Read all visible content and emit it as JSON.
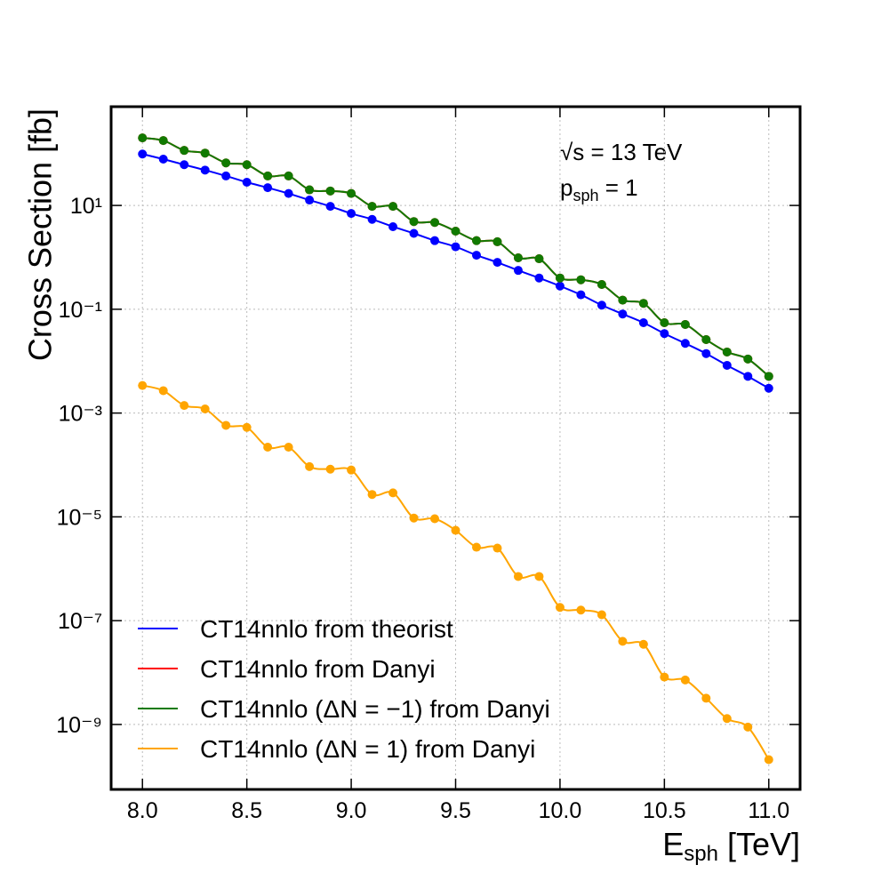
{
  "chart_data": {
    "type": "line",
    "x_label": {
      "main": "E",
      "sub": "sph",
      "rest": " [TeV]"
    },
    "y_label": "Cross Section [fb]",
    "annotations": [
      {
        "main": "√s = 13 TeV",
        "sub": "",
        "rest": ""
      },
      {
        "main": "p",
        "sub": "sph",
        "rest": " = 1"
      }
    ],
    "log_y": true,
    "grid": true,
    "legend": "lower left",
    "xlim": [
      7.85,
      11.15
    ],
    "ylim": [
      5.6e-11,
      800
    ],
    "xticks": [
      {
        "value": 8,
        "label": "8.0"
      },
      8.5,
      {
        "value": 9,
        "label": "9.0"
      },
      9.5,
      {
        "value": 10,
        "label": "10.0"
      },
      10.5,
      {
        "value": 11,
        "label": "11.0"
      }
    ],
    "yticks": [
      {
        "value": 1e-09,
        "label": "10⁻⁹"
      },
      {
        "value": 1e-07,
        "label": "10⁻⁷"
      },
      {
        "value": 1e-05,
        "label": "10⁻⁵"
      },
      {
        "value": 0.001,
        "label": "10⁻³"
      },
      {
        "value": 0.1,
        "label": "10⁻¹"
      },
      {
        "value": 10,
        "label": "10¹"
      }
    ],
    "x": [
      8.0,
      8.1,
      8.2,
      8.3,
      8.4,
      8.5,
      8.6,
      8.7,
      8.8,
      8.9,
      9.0,
      9.1,
      9.2,
      9.3,
      9.4,
      9.5,
      9.6,
      9.7,
      9.8,
      9.9,
      10.0,
      10.1,
      10.2,
      10.3,
      10.4,
      10.5,
      10.6,
      10.7,
      10.8,
      10.9,
      11.0
    ],
    "series": [
      {
        "name": "CT14nnlo from theorist",
        "color": "#0000ff",
        "values": [
          98,
          78,
          61,
          48,
          37,
          28,
          22,
          17,
          12.7,
          9.6,
          7.0,
          5.4,
          3.9,
          2.9,
          2.1,
          1.6,
          1.1,
          0.8,
          0.56,
          0.4,
          0.28,
          0.19,
          0.12,
          0.081,
          0.055,
          0.034,
          0.022,
          0.014,
          0.0083,
          0.0051,
          0.003
        ]
      },
      {
        "name": "CT14nnlo from Danyi",
        "color": "#ff0000",
        "values": [
          200,
          178,
          115,
          102,
          66,
          61,
          37,
          37,
          20,
          19,
          17,
          9.6,
          9.6,
          4.9,
          4.7,
          3.2,
          2.1,
          2.0,
          0.98,
          0.94,
          0.4,
          0.37,
          0.3,
          0.15,
          0.13,
          0.055,
          0.051,
          0.026,
          0.015,
          0.011,
          0.0051
        ]
      },
      {
        "name": "CT14nnlo (ΔN = −1) from Danyi",
        "color": "#117a00",
        "values": [
          200,
          178,
          115,
          102,
          66,
          61,
          37,
          37,
          20,
          19,
          17,
          9.6,
          9.6,
          4.9,
          4.7,
          3.2,
          2.1,
          2.0,
          0.98,
          0.94,
          0.4,
          0.37,
          0.3,
          0.15,
          0.13,
          0.055,
          0.051,
          0.026,
          0.015,
          0.011,
          0.0051
        ]
      },
      {
        "name": "CT14nnlo (ΔN = 1) from Danyi",
        "color": "#ffa500",
        "values": [
          0.0034,
          0.0027,
          0.0014,
          0.0012,
          0.00058,
          0.00053,
          0.00022,
          0.00022,
          9.3e-05,
          8.3e-05,
          8e-05,
          2.7e-05,
          2.9e-05,
          9.5e-06,
          9.2e-06,
          5.5e-06,
          2.6e-06,
          2.5e-06,
          7.1e-07,
          7.1e-07,
          1.8e-07,
          1.6e-07,
          1.3e-07,
          4e-08,
          3.5e-08,
          8.2e-09,
          7.2e-09,
          3.2e-09,
          1.3e-09,
          8.9e-10,
          2.1e-10
        ]
      }
    ]
  }
}
